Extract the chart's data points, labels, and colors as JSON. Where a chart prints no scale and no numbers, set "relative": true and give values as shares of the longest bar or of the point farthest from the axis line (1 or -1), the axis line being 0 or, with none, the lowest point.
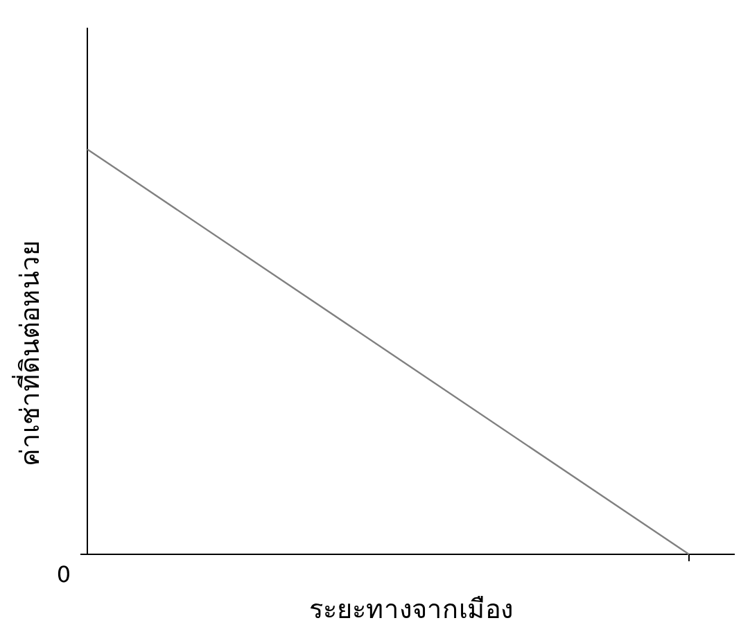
{
  "chart_data": {
    "type": "line",
    "relative": true,
    "xlabel": "ระยะทางจากเมือง",
    "ylabel": "ค่าเช่าที่ดินต่อหน่วย",
    "categories": [
      null,
      null
    ],
    "series": [
      {
        "color": "#808080",
        "values": [
          1,
          0
        ]
      }
    ],
    "annotations": [
      "0"
    ],
    "marker": "none"
  }
}
